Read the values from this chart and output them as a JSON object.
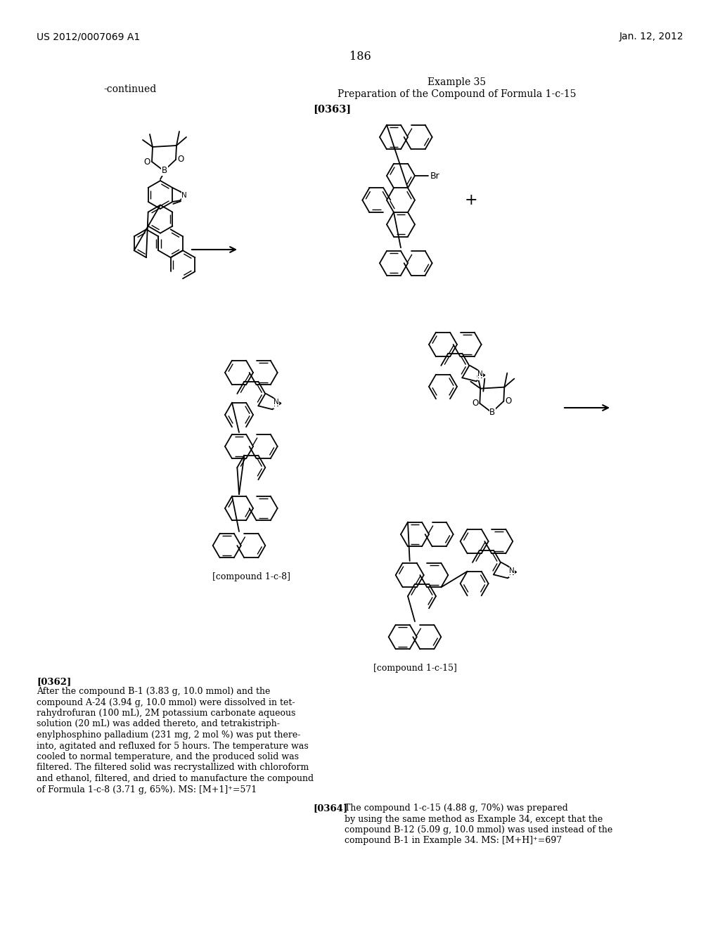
{
  "patent_number": "US 2012/0007069 A1",
  "date": "Jan. 12, 2012",
  "page_number": "186",
  "continued_label": "-continued",
  "example_title": "Example 35",
  "example_subtitle": "Preparation of the Compound of Formula 1-c-15",
  "paragraph_label1": "[0363]",
  "paragraph_label2": "[0362]",
  "paragraph_label3": "[0364]",
  "compound_label1": "[compound 1-c-8]",
  "compound_label2": "[compound 1-c-15]",
  "p1_bold": "[0362]",
  "p1_text": "After the compound B-1 (3.83 g, 10.0 mmol) and the\ncompound A-24 (3.94 g, 10.0 mmol) were dissolved in tet-\nrahydrofuran (100 mL), 2M potassium carbonate aqueous\nsolution (20 mL) was added thereto, and tetrakistriph-\nenylphosphino palladium (231 mg, 2 mol %) was put there-\ninto, agitated and refluxed for 5 hours. The temperature was\ncooled to normal temperature, and the produced solid was\nfiltered. The filtered solid was recrystallized with chloroform\nand ethanol, filtered, and dried to manufacture the compound\nof Formula 1-c-8 (3.71 g, 65%). MS: [M+1]⁺=571",
  "p2_bold": "[0364]",
  "p2_text": "The compound 1-c-15 (4.88 g, 70%) was prepared\nby using the same method as Example 34, except that the\ncompound B-12 (5.09 g, 10.0 mmol) was used instead of the\ncompound B-1 in Example 34. MS: [M+H]⁺=697",
  "background_color": "#ffffff",
  "text_color": "#000000"
}
